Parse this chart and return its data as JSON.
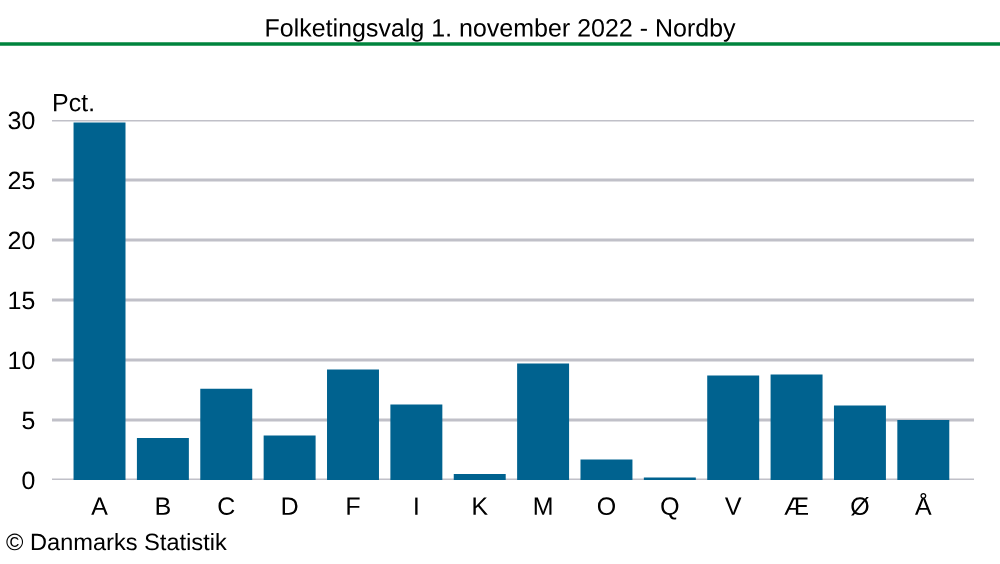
{
  "chart_data": {
    "type": "bar",
    "title": "Folketingsvalg 1. november 2022 - Nordby",
    "ylabel": "Pct.",
    "categories": [
      "A",
      "B",
      "C",
      "D",
      "F",
      "I",
      "K",
      "M",
      "O",
      "Q",
      "V",
      "Æ",
      "Ø",
      "Å"
    ],
    "values": [
      29.8,
      3.5,
      7.6,
      3.7,
      9.2,
      6.3,
      0.5,
      9.7,
      1.7,
      0.2,
      8.7,
      8.8,
      6.2,
      5.0
    ],
    "color": "#00628f",
    "ylim": [
      0,
      30
    ],
    "yticks": [
      0,
      5,
      10,
      15,
      20,
      25,
      30
    ],
    "grid": "y",
    "annotations": [
      "© Danmarks Statistik"
    ]
  }
}
